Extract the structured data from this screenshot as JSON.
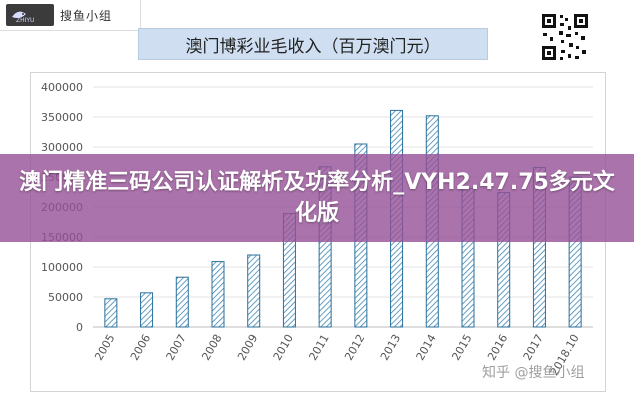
{
  "logo": {
    "mark_text": "ZHIYU",
    "name": "搜鱼小组"
  },
  "banner": {
    "text": "澳门精准三码公司认证解析及功率分析_VYH2.47.75多元文化版"
  },
  "watermark": {
    "text": "知乎 @搜鱼小组"
  },
  "colors": {
    "bar_stroke": "#2a6f9a",
    "bar_hatch": "#3d86b5",
    "banner": "#965096",
    "title_bg": "#cfdff1"
  },
  "chart_data": {
    "type": "bar",
    "title": "澳门博彩业毛收入（百万澳门元）",
    "xlabel": "",
    "ylabel": "",
    "categories": [
      "2005",
      "2006",
      "2007",
      "2008",
      "2009",
      "2010",
      "2011",
      "2012",
      "2013",
      "2014",
      "2015",
      "2016",
      "2017",
      "2018.10"
    ],
    "values": [
      47000,
      57000,
      83000,
      109000,
      120000,
      189000,
      267000,
      305000,
      361000,
      352000,
      231000,
      224000,
      266000,
      250000
    ],
    "yticks": [
      "0",
      "50000",
      "100000",
      "150000",
      "200000",
      "250000",
      "300000",
      "350000",
      "400000"
    ],
    "ylim": [
      0,
      400000
    ],
    "grid": true,
    "legend": "none"
  }
}
